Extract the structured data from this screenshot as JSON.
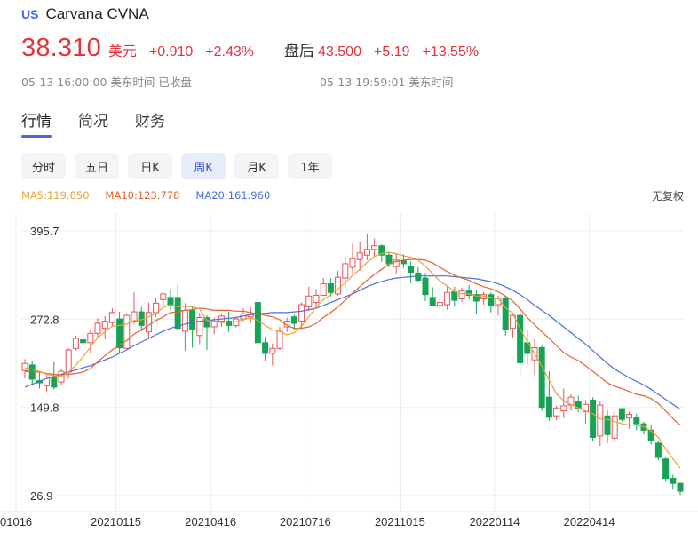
{
  "header": {
    "market_badge": "US",
    "name": "Carvana CVNA"
  },
  "quote": {
    "price": "38.310",
    "currency": "美元",
    "change": "+0.910",
    "change_pct": "+2.43%",
    "after_label": "盘后",
    "after_price": "43.500",
    "after_change": "+5.19",
    "after_change_pct": "+13.55%",
    "close_time": "05-13 16:00:00 美东时间 已收盘",
    "after_time": "05-13 19:59:01 美东时间"
  },
  "tabs": [
    "行情",
    "简况",
    "财务"
  ],
  "periods": [
    "分时",
    "五日",
    "日K",
    "周K",
    "月K",
    "1年"
  ],
  "ma": {
    "ma5": "MA5:119.850",
    "ma10": "MA10:123.778",
    "ma20": "MA20:161.960",
    "adjust": "无复权"
  },
  "colors": {
    "up": "#e8545b",
    "down": "#16a355",
    "ma5": "#e6a33a",
    "ma10": "#e2642f",
    "ma20": "#4a6fd8",
    "accent": "#4a63de"
  },
  "chart_data": {
    "type": "candlestick",
    "ylim": [
      26.9,
      395.7
    ],
    "y_ticks": [
      "395.7",
      "272.8",
      "149.8",
      "26.9"
    ],
    "y_tick_values": [
      395.7,
      272.8,
      149.8,
      26.9
    ],
    "x_ticks": [
      "01016",
      "20210115",
      "20210416",
      "20210716",
      "20211015",
      "20220114",
      "20220414"
    ],
    "x_tick_index": [
      0,
      13,
      26,
      39,
      52,
      65,
      78
    ],
    "candles": [
      {
        "o": 201,
        "h": 217,
        "l": 190,
        "c": 211
      },
      {
        "o": 209,
        "h": 214,
        "l": 180,
        "c": 189
      },
      {
        "o": 187,
        "h": 200,
        "l": 176,
        "c": 184
      },
      {
        "o": 180,
        "h": 197,
        "l": 172,
        "c": 192
      },
      {
        "o": 192,
        "h": 213,
        "l": 175,
        "c": 178
      },
      {
        "o": 185,
        "h": 203,
        "l": 180,
        "c": 200
      },
      {
        "o": 199,
        "h": 232,
        "l": 190,
        "c": 230
      },
      {
        "o": 232,
        "h": 250,
        "l": 229,
        "c": 246
      },
      {
        "o": 244,
        "h": 253,
        "l": 233,
        "c": 240
      },
      {
        "o": 240,
        "h": 258,
        "l": 226,
        "c": 253
      },
      {
        "o": 253,
        "h": 274,
        "l": 246,
        "c": 267
      },
      {
        "o": 260,
        "h": 277,
        "l": 245,
        "c": 270
      },
      {
        "o": 268,
        "h": 288,
        "l": 262,
        "c": 282
      },
      {
        "o": 273,
        "h": 283,
        "l": 226,
        "c": 233
      },
      {
        "o": 232,
        "h": 281,
        "l": 231,
        "c": 278
      },
      {
        "o": 270,
        "h": 310,
        "l": 266,
        "c": 283
      },
      {
        "o": 283,
        "h": 290,
        "l": 256,
        "c": 264
      },
      {
        "o": 255,
        "h": 296,
        "l": 245,
        "c": 282
      },
      {
        "o": 282,
        "h": 303,
        "l": 276,
        "c": 295
      },
      {
        "o": 300,
        "h": 310,
        "l": 290,
        "c": 308
      },
      {
        "o": 303,
        "h": 315,
        "l": 285,
        "c": 292
      },
      {
        "o": 303,
        "h": 321,
        "l": 256,
        "c": 260
      },
      {
        "o": 256,
        "h": 295,
        "l": 229,
        "c": 285
      },
      {
        "o": 285,
        "h": 290,
        "l": 233,
        "c": 259
      },
      {
        "o": 250,
        "h": 282,
        "l": 238,
        "c": 275
      },
      {
        "o": 275,
        "h": 278,
        "l": 230,
        "c": 262
      },
      {
        "o": 262,
        "h": 275,
        "l": 252,
        "c": 270
      },
      {
        "o": 270,
        "h": 281,
        "l": 262,
        "c": 277
      },
      {
        "o": 270,
        "h": 283,
        "l": 255,
        "c": 264
      },
      {
        "o": 264,
        "h": 276,
        "l": 261,
        "c": 273
      },
      {
        "o": 273,
        "h": 288,
        "l": 268,
        "c": 280
      },
      {
        "o": 276,
        "h": 290,
        "l": 267,
        "c": 279
      },
      {
        "o": 296,
        "h": 297,
        "l": 234,
        "c": 240
      },
      {
        "o": 240,
        "h": 248,
        "l": 215,
        "c": 225
      },
      {
        "o": 225,
        "h": 239,
        "l": 208,
        "c": 232
      },
      {
        "o": 232,
        "h": 262,
        "l": 230,
        "c": 256
      },
      {
        "o": 262,
        "h": 275,
        "l": 255,
        "c": 270
      },
      {
        "o": 276,
        "h": 280,
        "l": 258,
        "c": 267
      },
      {
        "o": 270,
        "h": 296,
        "l": 259,
        "c": 293
      },
      {
        "o": 290,
        "h": 318,
        "l": 284,
        "c": 305
      },
      {
        "o": 296,
        "h": 315,
        "l": 291,
        "c": 306
      },
      {
        "o": 306,
        "h": 330,
        "l": 305,
        "c": 322
      },
      {
        "o": 322,
        "h": 330,
        "l": 304,
        "c": 310
      },
      {
        "o": 308,
        "h": 340,
        "l": 305,
        "c": 331
      },
      {
        "o": 330,
        "h": 359,
        "l": 316,
        "c": 350
      },
      {
        "o": 345,
        "h": 378,
        "l": 335,
        "c": 357
      },
      {
        "o": 356,
        "h": 380,
        "l": 340,
        "c": 365
      },
      {
        "o": 362,
        "h": 392,
        "l": 355,
        "c": 370
      },
      {
        "o": 370,
        "h": 385,
        "l": 361,
        "c": 375
      },
      {
        "o": 375,
        "h": 377,
        "l": 353,
        "c": 362
      },
      {
        "o": 362,
        "h": 366,
        "l": 345,
        "c": 350
      },
      {
        "o": 346,
        "h": 364,
        "l": 336,
        "c": 355
      },
      {
        "o": 354,
        "h": 363,
        "l": 344,
        "c": 350
      },
      {
        "o": 346,
        "h": 353,
        "l": 323,
        "c": 338
      },
      {
        "o": 337,
        "h": 345,
        "l": 325,
        "c": 327
      },
      {
        "o": 330,
        "h": 337,
        "l": 298,
        "c": 307
      },
      {
        "o": 303,
        "h": 317,
        "l": 291,
        "c": 292
      },
      {
        "o": 292,
        "h": 302,
        "l": 286,
        "c": 296
      },
      {
        "o": 293,
        "h": 318,
        "l": 286,
        "c": 310
      },
      {
        "o": 311,
        "h": 318,
        "l": 290,
        "c": 299
      },
      {
        "o": 301,
        "h": 317,
        "l": 297,
        "c": 312
      },
      {
        "o": 312,
        "h": 320,
        "l": 300,
        "c": 306
      },
      {
        "o": 307,
        "h": 313,
        "l": 280,
        "c": 298
      },
      {
        "o": 301,
        "h": 311,
        "l": 293,
        "c": 307
      },
      {
        "o": 307,
        "h": 310,
        "l": 282,
        "c": 291
      },
      {
        "o": 293,
        "h": 305,
        "l": 278,
        "c": 302
      },
      {
        "o": 302,
        "h": 305,
        "l": 250,
        "c": 258
      },
      {
        "o": 260,
        "h": 282,
        "l": 247,
        "c": 278
      },
      {
        "o": 278,
        "h": 288,
        "l": 190,
        "c": 212
      },
      {
        "o": 240,
        "h": 258,
        "l": 210,
        "c": 225
      },
      {
        "o": 216,
        "h": 245,
        "l": 195,
        "c": 233
      },
      {
        "o": 233,
        "h": 236,
        "l": 145,
        "c": 150
      },
      {
        "o": 164,
        "h": 200,
        "l": 131,
        "c": 136
      },
      {
        "o": 138,
        "h": 152,
        "l": 132,
        "c": 149
      },
      {
        "o": 145,
        "h": 176,
        "l": 135,
        "c": 152
      },
      {
        "o": 153,
        "h": 168,
        "l": 145,
        "c": 164
      },
      {
        "o": 158,
        "h": 166,
        "l": 143,
        "c": 148
      },
      {
        "o": 144,
        "h": 160,
        "l": 127,
        "c": 154
      },
      {
        "o": 160,
        "h": 164,
        "l": 103,
        "c": 108
      },
      {
        "o": 110,
        "h": 158,
        "l": 96,
        "c": 153
      },
      {
        "o": 138,
        "h": 146,
        "l": 100,
        "c": 112
      },
      {
        "o": 107,
        "h": 144,
        "l": 101,
        "c": 138
      },
      {
        "o": 148,
        "h": 149,
        "l": 130,
        "c": 133
      },
      {
        "o": 135,
        "h": 144,
        "l": 120,
        "c": 140
      },
      {
        "o": 136,
        "h": 141,
        "l": 118,
        "c": 127
      },
      {
        "o": 127,
        "h": 130,
        "l": 112,
        "c": 118
      },
      {
        "o": 118,
        "h": 125,
        "l": 98,
        "c": 103
      },
      {
        "o": 100,
        "h": 103,
        "l": 76,
        "c": 80
      },
      {
        "o": 78,
        "h": 80,
        "l": 46,
        "c": 51
      },
      {
        "o": 51,
        "h": 56,
        "l": 35,
        "c": 44
      },
      {
        "o": 44,
        "h": 45,
        "l": 28,
        "c": 33
      }
    ],
    "ma5": [
      205,
      203,
      200,
      196,
      194,
      193,
      199,
      209,
      220,
      234,
      247,
      255,
      263,
      264,
      266,
      271,
      272,
      276,
      281,
      289,
      293,
      290,
      291,
      290,
      287,
      271,
      270,
      268,
      269,
      269,
      273,
      275,
      271,
      264,
      258,
      256,
      251,
      254,
      263,
      276,
      290,
      300,
      307,
      315,
      323,
      334,
      342,
      352,
      360,
      364,
      366,
      364,
      361,
      359,
      355,
      347,
      336,
      326,
      319,
      311,
      308,
      308,
      305,
      305,
      303,
      301,
      289,
      281,
      260,
      241,
      225,
      207,
      188,
      169,
      159,
      154,
      149,
      145,
      141,
      134,
      133,
      130,
      127,
      125,
      125,
      123,
      117,
      108,
      92,
      78,
      65
    ],
    "ma10": [
      200,
      199,
      199,
      197,
      196,
      195,
      196,
      197,
      199,
      204,
      213,
      222,
      230,
      237,
      243,
      252,
      258,
      264,
      271,
      276,
      282,
      283,
      285,
      286,
      288,
      287,
      285,
      285,
      285,
      284,
      284,
      282,
      280,
      278,
      276,
      272,
      264,
      260,
      260,
      262,
      267,
      275,
      282,
      290,
      299,
      309,
      318,
      327,
      335,
      342,
      350,
      353,
      355,
      356,
      356,
      355,
      351,
      345,
      339,
      334,
      330,
      327,
      322,
      318,
      315,
      311,
      305,
      298,
      287,
      275,
      265,
      255,
      246,
      236,
      226,
      220,
      215,
      208,
      200,
      192,
      184,
      179,
      176,
      172,
      168,
      166,
      162,
      155,
      145,
      134,
      125
    ],
    "ma20": [
      178,
      182,
      186,
      190,
      193,
      196,
      199,
      202,
      205,
      208,
      212,
      216,
      220,
      225,
      230,
      236,
      241,
      246,
      251,
      256,
      260,
      263,
      266,
      268,
      270,
      271,
      272,
      273,
      274,
      275,
      277,
      279,
      280,
      281,
      282,
      282,
      282,
      283,
      284,
      286,
      288,
      292,
      296,
      300,
      304,
      308,
      313,
      318,
      322,
      325,
      328,
      330,
      331,
      332,
      333,
      333,
      333,
      333,
      333,
      332,
      331,
      330,
      329,
      327,
      325,
      322,
      318,
      313,
      307,
      300,
      292,
      285,
      278,
      270,
      262,
      254,
      246,
      238,
      229,
      220,
      211,
      203,
      197,
      191,
      186,
      181,
      175,
      168,
      161,
      154,
      147
    ]
  }
}
